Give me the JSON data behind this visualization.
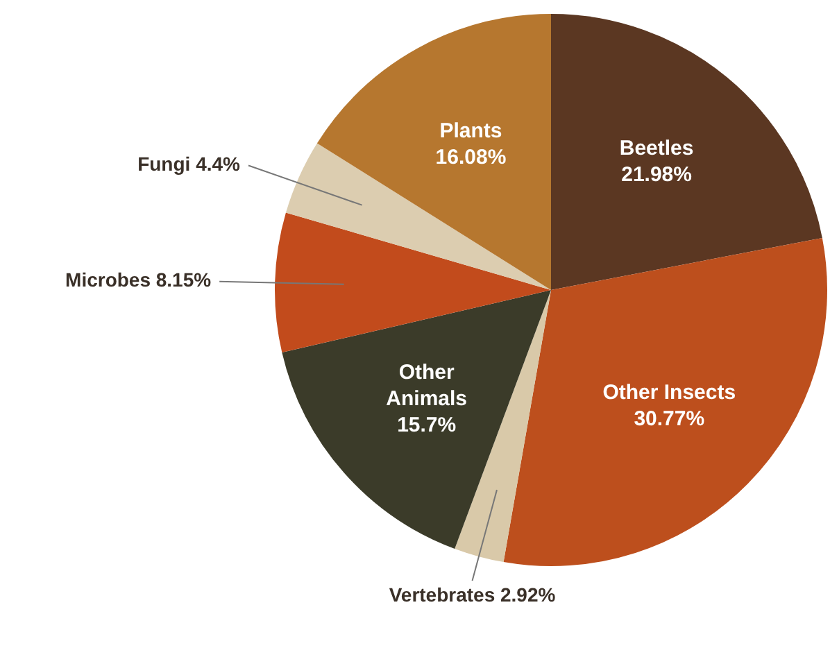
{
  "chart_data": {
    "type": "pie",
    "categories": [
      "Beetles",
      "Other Insects",
      "Vertebrates",
      "Other Animals",
      "Microbes",
      "Fungi",
      "Plants"
    ],
    "values": [
      21.98,
      30.77,
      2.92,
      15.7,
      8.15,
      4.4,
      16.08
    ],
    "value_labels": [
      "21.98%",
      "30.77%",
      "2.92%",
      "15.7%",
      "8.15%",
      "4.4%",
      "16.08%"
    ],
    "colors": [
      "#5b3722",
      "#bd4f1d",
      "#d9c9a9",
      "#3b3b29",
      "#c24b1c",
      "#dccdb0",
      "#b6772f"
    ],
    "legend": false
  }
}
